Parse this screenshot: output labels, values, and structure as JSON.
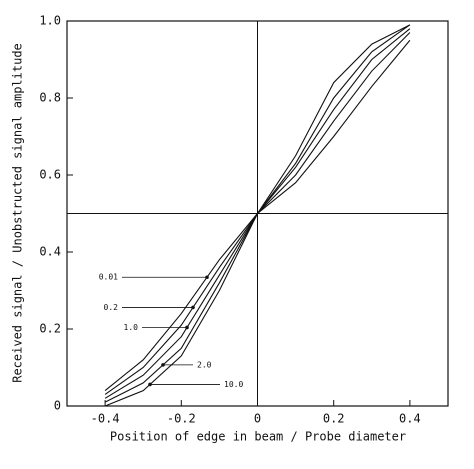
{
  "chart_data": {
    "type": "line",
    "xlabel": "Position of edge in beam / Probe diameter",
    "ylabel": "Received signal / Unobstructed signal amplitude",
    "x": [
      -0.4,
      -0.3,
      -0.2,
      -0.1,
      0,
      0.1,
      0.2,
      0.3,
      0.4
    ],
    "series": [
      {
        "name": "0.01",
        "color": "#111111",
        "values": [
          0.04,
          0.12,
          0.24,
          0.38,
          0.5,
          0.65,
          0.84,
          0.94,
          0.99
        ]
      },
      {
        "name": "0.2",
        "color": "#111111",
        "values": [
          0.03,
          0.1,
          0.21,
          0.36,
          0.5,
          0.63,
          0.8,
          0.92,
          0.99
        ]
      },
      {
        "name": "1.0",
        "color": "#111111",
        "values": [
          0.02,
          0.08,
          0.18,
          0.34,
          0.5,
          0.62,
          0.77,
          0.9,
          0.98
        ]
      },
      {
        "name": "2.0",
        "color": "#111111",
        "values": [
          0.01,
          0.06,
          0.15,
          0.32,
          0.5,
          0.6,
          0.74,
          0.87,
          0.97
        ]
      },
      {
        "name": "10.0",
        "color": "#111111",
        "values": [
          0.0,
          0.04,
          0.13,
          0.3,
          0.5,
          0.58,
          0.7,
          0.83,
          0.95
        ]
      }
    ],
    "xlim": [
      -0.5,
      0.5
    ],
    "ylim": [
      0,
      1
    ],
    "xticks": [
      -0.4,
      -0.2,
      0,
      0.2,
      0.4
    ],
    "yticks": [
      0,
      0.2,
      0.4,
      0.6,
      0.8,
      {
        "value": 1,
        "label": "1.0"
      }
    ],
    "reference_lines": {
      "x": 0,
      "y": 0.5
    },
    "grid": false
  }
}
